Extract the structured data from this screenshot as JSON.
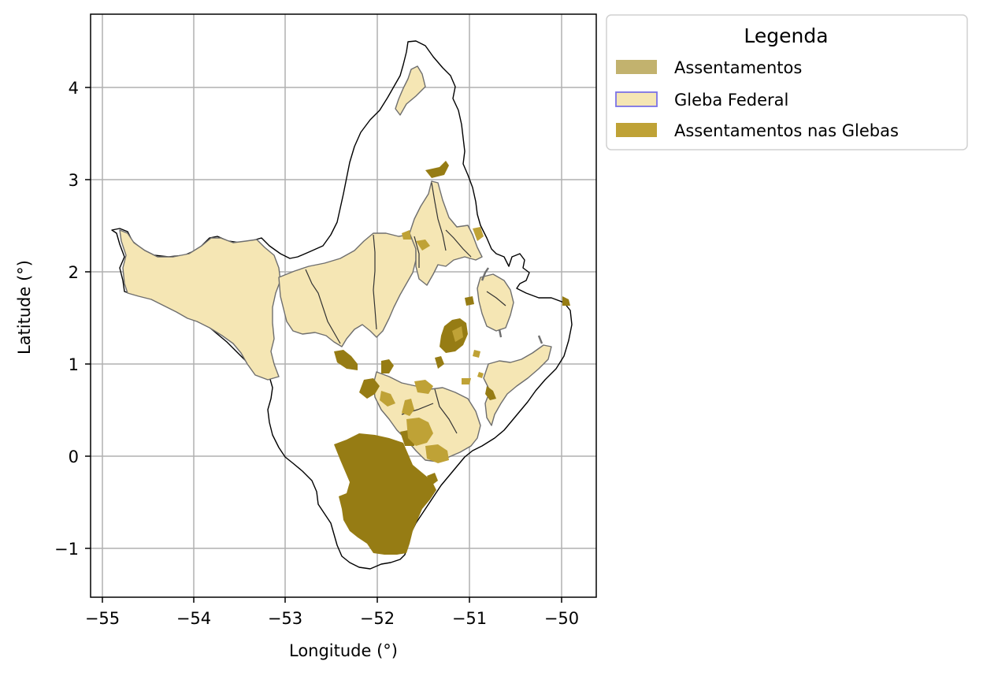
{
  "map": {
    "xlabel": "Longitude (°)",
    "ylabel": "Latitude (°)",
    "x_ticks": [
      "−55",
      "−54",
      "−53",
      "−52",
      "−51",
      "−50"
    ],
    "y_ticks": [
      "4",
      "3",
      "2",
      "1",
      "0",
      "−1"
    ],
    "grid": true,
    "colors": {
      "boundary": "#000000",
      "gleba_fill": "#f5e6b4",
      "gleba_edge": "#6e6e6e",
      "settlement_fill": "#c2b26e",
      "overlap_fill": "#bfa236",
      "overlap_dark": "#967c14",
      "grid": "#b0b0b0"
    }
  },
  "legend": {
    "title": "Legenda",
    "items": [
      {
        "label": "Assentamentos",
        "fill": "#c2b26e",
        "edge": "#c2b26e"
      },
      {
        "label": "Gleba Federal",
        "fill": "#f5e6b4",
        "edge": "#7b72e6"
      },
      {
        "label": "Assentamentos nas Glebas",
        "fill": "#bfa236",
        "edge": "#bfa236"
      }
    ]
  }
}
